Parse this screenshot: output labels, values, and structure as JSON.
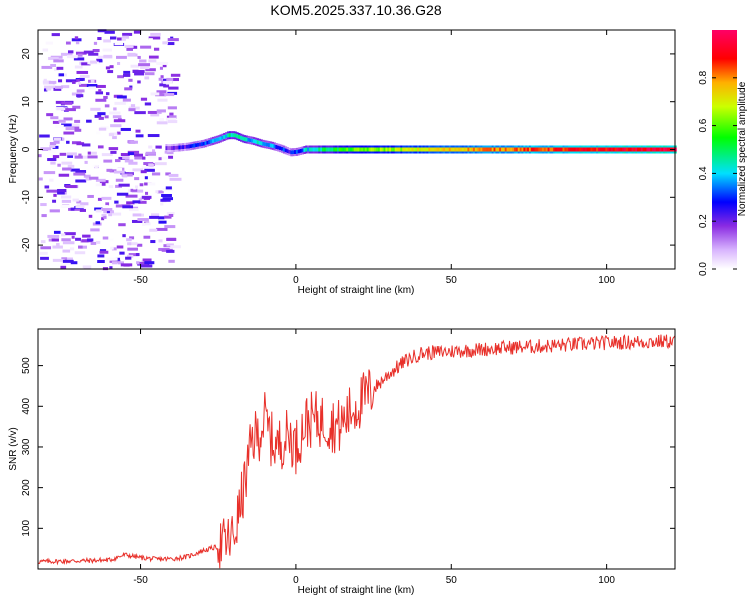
{
  "figure_title": "KOM5.2025.337.10.36.G28",
  "chart_data": [
    {
      "type": "heatmap",
      "title": "KOM5.2025.337.10.36.G28",
      "xlabel": "Height of straight line (km)",
      "ylabel": "Frequency (Hz)",
      "xlim": [
        -83,
        122
      ],
      "ylim": [
        -25,
        25
      ],
      "xticks": [
        -50,
        0,
        50,
        100
      ],
      "xtick_labels": [
        "-50",
        "0",
        "50",
        "100"
      ],
      "yticks": [
        -20,
        -10,
        0,
        10,
        20
      ],
      "ytick_labels": [
        "-20",
        "-10",
        "0",
        "10",
        "20"
      ],
      "colorbar": {
        "label": "Normalized spectral amplitude",
        "range": [
          0,
          1
        ],
        "ticks": [
          0.0,
          0.2,
          0.4,
          0.6,
          0.8
        ],
        "tick_labels": [
          "0.0",
          "0.2",
          "0.4",
          "0.6",
          "0.8"
        ],
        "colormap": "rainbow (white → violet → blue → cyan → green → yellow → orange → red → magenta)"
      },
      "ridge": {
        "description_of_dominant_trace": "Doppler ridge of the carrier",
        "x": [
          -40,
          -35,
          -30,
          -25,
          -22,
          -20,
          -17,
          -14,
          -11,
          -8,
          -5,
          -2,
          0,
          3,
          10,
          20,
          40,
          60,
          80,
          100,
          122
        ],
        "freq": [
          0.3,
          0.6,
          1.2,
          2.2,
          3.0,
          3.0,
          2.2,
          1.8,
          1.2,
          0.8,
          0.2,
          -0.6,
          -0.5,
          0.0,
          0.0,
          0.0,
          0.0,
          0.0,
          0.0,
          0.0,
          0.0
        ],
        "amplitude": [
          0.2,
          0.25,
          0.3,
          0.35,
          0.45,
          0.45,
          0.4,
          0.4,
          0.4,
          0.35,
          0.3,
          0.25,
          0.3,
          0.4,
          0.5,
          0.6,
          0.7,
          0.8,
          0.85,
          0.9,
          0.95
        ]
      },
      "noise_region": {
        "x_range": [
          -83,
          -40
        ],
        "freq_range": [
          -25,
          25
        ],
        "amplitude_range": [
          0.0,
          0.25
        ]
      }
    },
    {
      "type": "line",
      "xlabel": "Height of straight line (km)",
      "ylabel": "SNR (v/v)",
      "xlim": [
        -83,
        122
      ],
      "ylim": [
        0,
        590
      ],
      "xticks": [
        -50,
        0,
        50,
        100
      ],
      "xtick_labels": [
        "-50",
        "0",
        "50",
        "100"
      ],
      "yticks": [
        100,
        200,
        300,
        400,
        500
      ],
      "ytick_labels": [
        "100",
        "200",
        "300",
        "400",
        "500"
      ],
      "color": "#e8302a",
      "series": [
        {
          "x": [
            -83,
            -70,
            -60,
            -55,
            -50,
            -45,
            -40,
            -35,
            -30,
            -25,
            -22,
            -20,
            -18,
            -16,
            -14,
            -12,
            -10,
            -8,
            -6,
            -4,
            -2,
            0,
            3,
            6,
            10,
            14,
            18,
            22,
            26,
            30,
            35,
            40,
            50,
            60,
            70,
            80,
            90,
            100,
            110,
            122
          ],
          "values": [
            18,
            20,
            22,
            35,
            28,
            24,
            25,
            30,
            45,
            55,
            65,
            80,
            150,
            230,
            320,
            330,
            370,
            320,
            300,
            320,
            330,
            300,
            360,
            370,
            360,
            350,
            390,
            420,
            450,
            480,
            510,
            530,
            535,
            540,
            545,
            548,
            552,
            556,
            558,
            560
          ]
        }
      ]
    }
  ]
}
